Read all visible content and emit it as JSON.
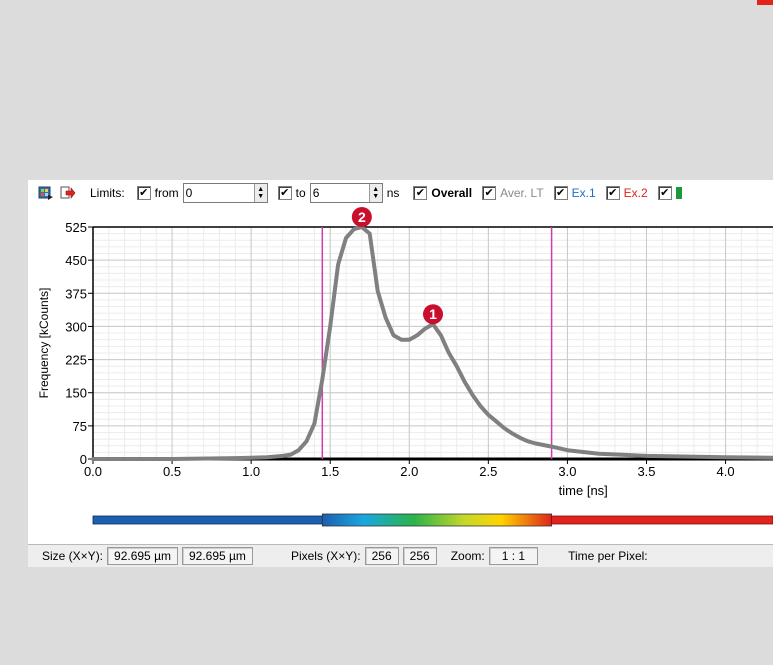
{
  "toolbar": {
    "limits_label": "Limits:",
    "from_label": "from",
    "from_value": "0",
    "to_label": "to",
    "to_value": "6",
    "unit_label": "ns",
    "overall_label": "Overall",
    "aver_lt_label": "Aver. LT",
    "ex1_label": "Ex.1",
    "ex2_label": "Ex.2",
    "overall_checked": true,
    "aver_lt_checked": true,
    "ex1_checked": true,
    "ex2_checked": true,
    "from_checked": true,
    "to_checked": true,
    "colors": {
      "ex1": "#1c6fd0",
      "ex2": "#e0231c",
      "aver_lt": "#8a8a8a",
      "ex3": "#1a9a3a"
    }
  },
  "status": {
    "size_label": "Size (X×Y):",
    "size_x": "92.695 µm",
    "size_y": "92.695 µm",
    "pixels_label": "Pixels (X×Y):",
    "pixels_x": "256",
    "pixels_y": "256",
    "zoom_label": "Zoom:",
    "zoom_value": "1 : 1",
    "tpp_label": "Time per Pixel:"
  },
  "chart_data": {
    "type": "line",
    "xlabel": "time [ns]",
    "ylabel": "Frequency [kCounts]",
    "xlim": [
      0,
      4.3
    ],
    "ylim": [
      0,
      525
    ],
    "xticks": [
      "0.0",
      "0.5",
      "1.0",
      "1.5",
      "2.0",
      "2.5",
      "3.0",
      "3.5",
      "4.0"
    ],
    "yticks": [
      "525",
      "450",
      "375",
      "300",
      "225",
      "150",
      "75",
      "0"
    ],
    "grid": true,
    "cursor_lines": [
      1.45,
      2.9
    ],
    "cursor_color": "#d03cab",
    "line_color": "#808080",
    "markers": [
      {
        "label": "2",
        "x": 1.7,
        "y": 525
      },
      {
        "label": "1",
        "x": 2.15,
        "y": 305
      }
    ],
    "colorbar_range": [
      1.45,
      2.9
    ],
    "series": [
      {
        "x": [
          0.0,
          0.5,
          0.9,
          1.0,
          1.1,
          1.2,
          1.25,
          1.3,
          1.35,
          1.4,
          1.45,
          1.5,
          1.55,
          1.6,
          1.65,
          1.7,
          1.75,
          1.8,
          1.85,
          1.9,
          1.95,
          2.0,
          2.05,
          2.1,
          2.15,
          2.2,
          2.25,
          2.3,
          2.35,
          2.4,
          2.45,
          2.5,
          2.55,
          2.6,
          2.65,
          2.7,
          2.75,
          2.8,
          2.9,
          3.0,
          3.2,
          3.5,
          4.0,
          4.3
        ],
        "y": [
          0,
          0,
          2,
          3,
          4,
          7,
          10,
          20,
          40,
          80,
          180,
          300,
          440,
          500,
          520,
          525,
          510,
          380,
          320,
          280,
          270,
          270,
          280,
          295,
          305,
          280,
          240,
          210,
          175,
          145,
          120,
          100,
          85,
          70,
          58,
          48,
          40,
          35,
          28,
          20,
          12,
          7,
          4,
          3
        ]
      }
    ]
  }
}
